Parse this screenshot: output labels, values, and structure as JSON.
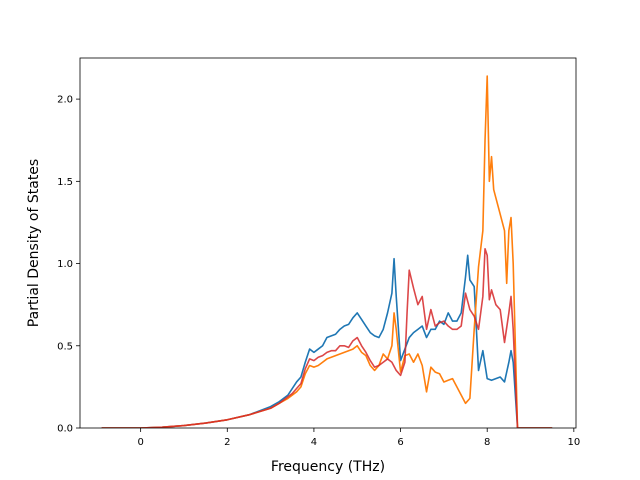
{
  "chart_data": {
    "type": "line",
    "title": "",
    "xlabel": "Frequency (THz)",
    "ylabel": "Partial Density of States",
    "xlim": [
      -1.4,
      10.05
    ],
    "ylim": [
      0.0,
      2.25
    ],
    "xticks": [
      0,
      2,
      4,
      6,
      8,
      10
    ],
    "yticks": [
      0.0,
      0.5,
      1.0,
      1.5,
      2.0
    ],
    "xtick_labels": [
      "0",
      "2",
      "4",
      "6",
      "8",
      "10"
    ],
    "ytick_labels": [
      "0.0",
      "0.5",
      "1.0",
      "1.5",
      "2.0"
    ],
    "grid": false,
    "legend": "none",
    "series": [
      {
        "color": "#1f77b4",
        "x": [
          -0.9,
          0,
          0.5,
          1,
          1.5,
          2,
          2.5,
          3,
          3.2,
          3.4,
          3.5,
          3.6,
          3.7,
          3.8,
          3.9,
          4.0,
          4.1,
          4.2,
          4.3,
          4.4,
          4.5,
          4.6,
          4.7,
          4.8,
          4.9,
          5.0,
          5.1,
          5.2,
          5.3,
          5.4,
          5.5,
          5.6,
          5.7,
          5.8,
          5.85,
          5.9,
          6.0,
          6.1,
          6.2,
          6.3,
          6.4,
          6.5,
          6.6,
          6.7,
          6.8,
          6.9,
          7.0,
          7.1,
          7.2,
          7.3,
          7.4,
          7.5,
          7.55,
          7.6,
          7.7,
          7.8,
          7.9,
          8.0,
          8.1,
          8.2,
          8.3,
          8.4,
          8.5,
          8.55,
          8.6,
          8.7,
          9.5
        ],
        "values": [
          0.0,
          0.0,
          0.005,
          0.015,
          0.03,
          0.05,
          0.08,
          0.13,
          0.16,
          0.2,
          0.24,
          0.28,
          0.31,
          0.4,
          0.48,
          0.46,
          0.48,
          0.5,
          0.55,
          0.56,
          0.57,
          0.6,
          0.62,
          0.63,
          0.67,
          0.7,
          0.66,
          0.62,
          0.58,
          0.56,
          0.55,
          0.6,
          0.7,
          0.82,
          1.03,
          0.8,
          0.41,
          0.48,
          0.55,
          0.58,
          0.6,
          0.62,
          0.55,
          0.6,
          0.6,
          0.65,
          0.63,
          0.7,
          0.65,
          0.65,
          0.7,
          0.92,
          1.05,
          0.9,
          0.86,
          0.35,
          0.47,
          0.3,
          0.29,
          0.3,
          0.31,
          0.28,
          0.4,
          0.47,
          0.4,
          0.0,
          0.0
        ]
      },
      {
        "color": "#ff7f0e",
        "x": [
          -0.9,
          0,
          0.5,
          1,
          1.5,
          2,
          2.5,
          3,
          3.2,
          3.4,
          3.5,
          3.6,
          3.7,
          3.8,
          3.9,
          4.0,
          4.1,
          4.2,
          4.3,
          4.4,
          4.5,
          4.6,
          4.7,
          4.8,
          4.9,
          5.0,
          5.1,
          5.2,
          5.3,
          5.4,
          5.5,
          5.6,
          5.7,
          5.8,
          5.85,
          5.9,
          6.0,
          6.1,
          6.2,
          6.3,
          6.4,
          6.5,
          6.6,
          6.7,
          6.8,
          6.9,
          7.0,
          7.1,
          7.2,
          7.3,
          7.4,
          7.5,
          7.6,
          7.7,
          7.8,
          7.9,
          7.95,
          8.0,
          8.05,
          8.1,
          8.15,
          8.2,
          8.3,
          8.4,
          8.45,
          8.5,
          8.55,
          8.6,
          8.7,
          9.5
        ],
        "values": [
          0.0,
          0.0,
          0.005,
          0.015,
          0.03,
          0.05,
          0.08,
          0.12,
          0.15,
          0.18,
          0.2,
          0.22,
          0.25,
          0.33,
          0.38,
          0.37,
          0.38,
          0.4,
          0.42,
          0.43,
          0.44,
          0.45,
          0.46,
          0.47,
          0.48,
          0.5,
          0.46,
          0.44,
          0.38,
          0.35,
          0.38,
          0.45,
          0.42,
          0.5,
          0.7,
          0.6,
          0.34,
          0.44,
          0.45,
          0.4,
          0.45,
          0.38,
          0.22,
          0.37,
          0.34,
          0.33,
          0.28,
          0.29,
          0.3,
          0.25,
          0.2,
          0.15,
          0.18,
          0.6,
          0.98,
          1.2,
          1.75,
          2.14,
          1.5,
          1.65,
          1.45,
          1.4,
          1.3,
          1.2,
          0.88,
          1.2,
          1.28,
          1.0,
          0.0,
          0.0
        ]
      },
      {
        "color": "#d62728",
        "opacity": 0.85,
        "x": [
          -0.9,
          0,
          0.5,
          1,
          1.5,
          2,
          2.5,
          3,
          3.2,
          3.4,
          3.5,
          3.6,
          3.7,
          3.8,
          3.9,
          4.0,
          4.1,
          4.2,
          4.3,
          4.4,
          4.5,
          4.6,
          4.7,
          4.8,
          4.9,
          5.0,
          5.1,
          5.2,
          5.3,
          5.4,
          5.5,
          5.6,
          5.7,
          5.8,
          5.9,
          6.0,
          6.1,
          6.15,
          6.2,
          6.3,
          6.4,
          6.5,
          6.6,
          6.7,
          6.8,
          6.9,
          7.0,
          7.1,
          7.2,
          7.3,
          7.4,
          7.5,
          7.6,
          7.7,
          7.8,
          7.9,
          7.95,
          8.0,
          8.05,
          8.1,
          8.2,
          8.3,
          8.4,
          8.5,
          8.55,
          8.6,
          8.7,
          9.5
        ],
        "values": [
          0.0,
          0.0,
          0.005,
          0.015,
          0.03,
          0.05,
          0.08,
          0.12,
          0.15,
          0.19,
          0.21,
          0.24,
          0.27,
          0.36,
          0.42,
          0.41,
          0.43,
          0.44,
          0.46,
          0.47,
          0.47,
          0.5,
          0.5,
          0.49,
          0.53,
          0.55,
          0.5,
          0.46,
          0.41,
          0.37,
          0.38,
          0.4,
          0.42,
          0.4,
          0.35,
          0.32,
          0.4,
          0.7,
          0.96,
          0.85,
          0.75,
          0.8,
          0.6,
          0.72,
          0.62,
          0.64,
          0.65,
          0.62,
          0.6,
          0.6,
          0.62,
          0.82,
          0.72,
          0.68,
          0.6,
          0.8,
          1.09,
          1.05,
          0.78,
          0.84,
          0.75,
          0.72,
          0.52,
          0.7,
          0.8,
          0.6,
          0.0,
          0.0
        ]
      }
    ]
  }
}
